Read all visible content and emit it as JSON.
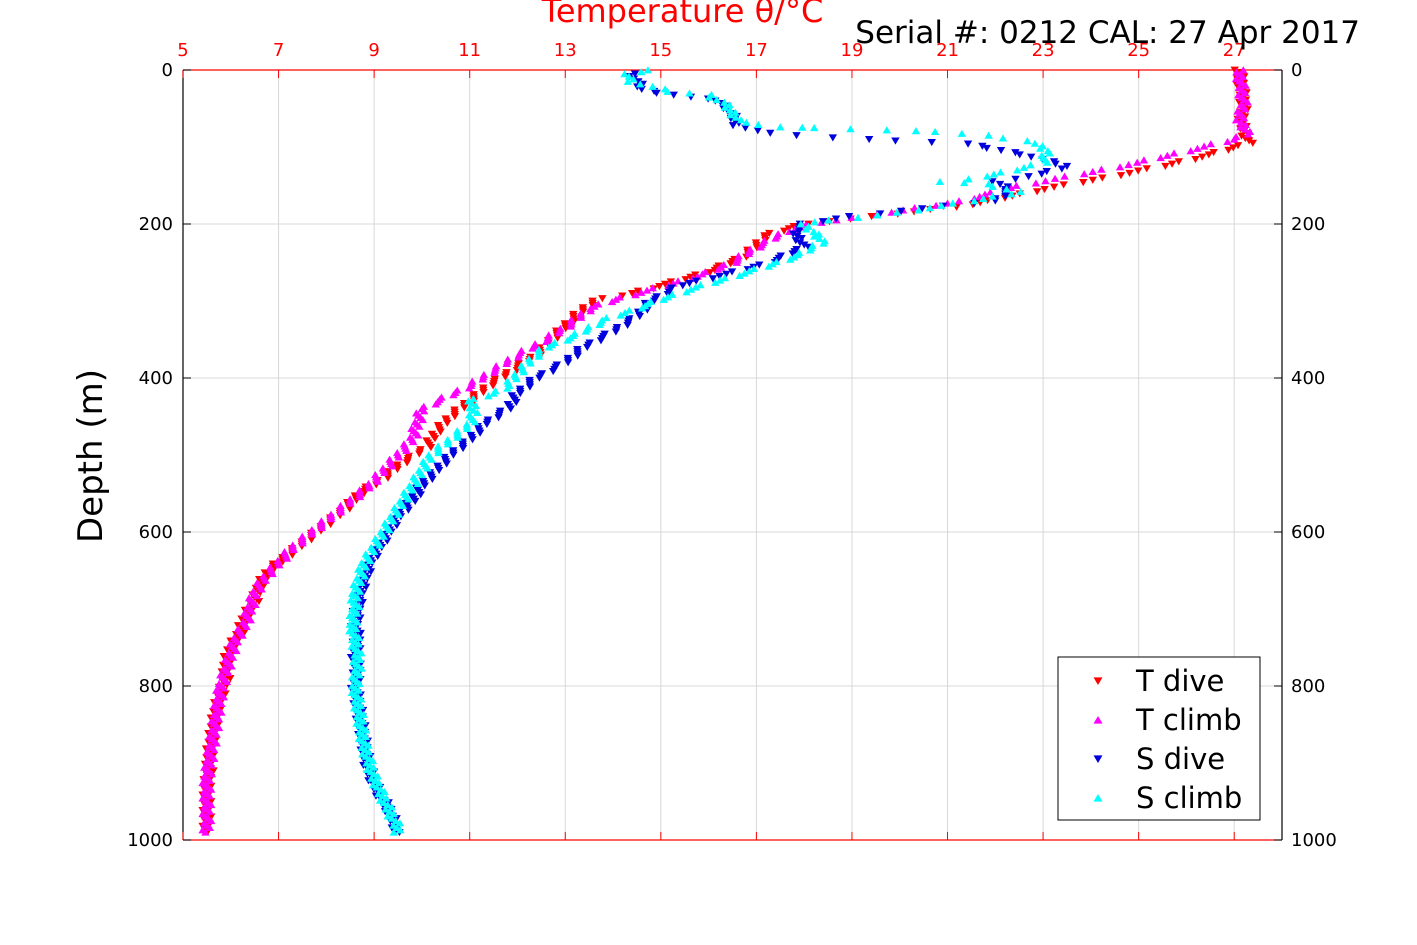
{
  "chart_data": {
    "type": "scatter",
    "title": "Temperature θ/°C",
    "annotation": "Serial #: 0212  CAL: 27 Apr 2017",
    "xlabel": "Temperature θ/°C",
    "ylabel": "Depth (m)",
    "xlim": [
      5,
      28
    ],
    "ylim": [
      0,
      1000
    ],
    "y_reversed": true,
    "x_axis_position": "top",
    "x_ticks": [
      5,
      7,
      9,
      11,
      13,
      15,
      17,
      19,
      21,
      23,
      25,
      27
    ],
    "y_ticks": [
      0,
      200,
      400,
      600,
      800,
      1000
    ],
    "y_ticks_right": true,
    "grid": true,
    "legend_position": "bottom-right",
    "colors": {
      "axis": "#ff0000",
      "grid": "#d8d8d8",
      "text": "#000000"
    },
    "series": [
      {
        "name": "T dive",
        "marker": "triangle-down",
        "color": "#ff0000",
        "points": [
          [
            27.1,
            0
          ],
          [
            27.15,
            20
          ],
          [
            27.2,
            45
          ],
          [
            27.15,
            70
          ],
          [
            27.3,
            95
          ],
          [
            26.5,
            110
          ],
          [
            25.5,
            125
          ],
          [
            24.3,
            140
          ],
          [
            23.0,
            155
          ],
          [
            21.5,
            175
          ],
          [
            19.5,
            190
          ],
          [
            18.0,
            200
          ],
          [
            17.2,
            215
          ],
          [
            16.8,
            240
          ],
          [
            16.1,
            260
          ],
          [
            15.3,
            275
          ],
          [
            14.4,
            290
          ],
          [
            13.6,
            300
          ],
          [
            13.2,
            320
          ],
          [
            12.8,
            345
          ],
          [
            12.4,
            370
          ],
          [
            11.9,
            390
          ],
          [
            11.4,
            410
          ],
          [
            11.0,
            430
          ],
          [
            10.6,
            450
          ],
          [
            10.3,
            470
          ],
          [
            10.1,
            490
          ],
          [
            9.6,
            510
          ],
          [
            9.2,
            530
          ],
          [
            8.7,
            550
          ],
          [
            8.4,
            570
          ],
          [
            8.0,
            590
          ],
          [
            7.6,
            610
          ],
          [
            7.2,
            630
          ],
          [
            6.8,
            650
          ],
          [
            6.6,
            670
          ],
          [
            6.5,
            690
          ],
          [
            6.3,
            710
          ],
          [
            6.2,
            730
          ],
          [
            6.0,
            750
          ],
          [
            5.9,
            770
          ],
          [
            5.9,
            790
          ],
          [
            5.8,
            810
          ],
          [
            5.7,
            830
          ],
          [
            5.65,
            850
          ],
          [
            5.6,
            870
          ],
          [
            5.55,
            890
          ],
          [
            5.55,
            910
          ],
          [
            5.5,
            930
          ],
          [
            5.5,
            950
          ],
          [
            5.5,
            970
          ],
          [
            5.5,
            988
          ]
        ]
      },
      {
        "name": "T climb",
        "marker": "triangle-up",
        "color": "#ff00ff",
        "points": [
          [
            27.1,
            0
          ],
          [
            27.15,
            20
          ],
          [
            27.2,
            45
          ],
          [
            27.1,
            65
          ],
          [
            27.3,
            80
          ],
          [
            27.0,
            90
          ],
          [
            26.0,
            105
          ],
          [
            25.0,
            120
          ],
          [
            23.8,
            135
          ],
          [
            22.5,
            150
          ],
          [
            21.3,
            170
          ],
          [
            19.8,
            185
          ],
          [
            18.3,
            198
          ],
          [
            17.6,
            210
          ],
          [
            17.0,
            230
          ],
          [
            16.5,
            250
          ],
          [
            15.9,
            265
          ],
          [
            15.1,
            280
          ],
          [
            14.2,
            295
          ],
          [
            13.5,
            310
          ],
          [
            13.1,
            330
          ],
          [
            12.6,
            350
          ],
          [
            12.0,
            370
          ],
          [
            11.5,
            390
          ],
          [
            11.0,
            410
          ],
          [
            10.5,
            425
          ],
          [
            10.0,
            440
          ],
          [
            9.9,
            460
          ],
          [
            9.8,
            480
          ],
          [
            9.5,
            500
          ],
          [
            9.2,
            520
          ],
          [
            8.9,
            540
          ],
          [
            8.5,
            560
          ],
          [
            8.1,
            580
          ],
          [
            7.7,
            600
          ],
          [
            7.3,
            620
          ],
          [
            7.0,
            640
          ],
          [
            6.7,
            660
          ],
          [
            6.5,
            680
          ],
          [
            6.4,
            700
          ],
          [
            6.3,
            720
          ],
          [
            6.1,
            740
          ],
          [
            6.0,
            760
          ],
          [
            5.9,
            780
          ],
          [
            5.8,
            800
          ],
          [
            5.75,
            820
          ],
          [
            5.7,
            840
          ],
          [
            5.65,
            860
          ],
          [
            5.6,
            880
          ],
          [
            5.55,
            900
          ],
          [
            5.5,
            920
          ],
          [
            5.5,
            940
          ],
          [
            5.5,
            960
          ],
          [
            5.5,
            975
          ],
          [
            5.5,
            990
          ]
        ]
      },
      {
        "name": "S dive",
        "marker": "triangle-down",
        "color": "#0000dd",
        "points": [
          [
            14.4,
            5
          ],
          [
            14.5,
            15
          ],
          [
            14.6,
            25
          ],
          [
            15.0,
            30
          ],
          [
            15.6,
            35
          ],
          [
            16.2,
            40
          ],
          [
            16.4,
            50
          ],
          [
            16.5,
            60
          ],
          [
            16.6,
            72
          ],
          [
            17.2,
            82
          ],
          [
            18.6,
            88
          ],
          [
            20.0,
            92
          ],
          [
            21.4,
            96
          ],
          [
            22.6,
            110
          ],
          [
            23.5,
            125
          ],
          [
            23.0,
            135
          ],
          [
            22.0,
            145
          ],
          [
            22.3,
            155
          ],
          [
            22.0,
            170
          ],
          [
            20.5,
            180
          ],
          [
            19.0,
            190
          ],
          [
            18.0,
            200
          ],
          [
            17.8,
            210
          ],
          [
            18.0,
            230
          ],
          [
            17.3,
            250
          ],
          [
            16.4,
            265
          ],
          [
            15.4,
            280
          ],
          [
            14.8,
            300
          ],
          [
            14.5,
            320
          ],
          [
            14.0,
            340
          ],
          [
            13.4,
            360
          ],
          [
            13.0,
            380
          ],
          [
            12.4,
            400
          ],
          [
            12.0,
            420
          ],
          [
            11.8,
            440
          ],
          [
            11.3,
            460
          ],
          [
            11.0,
            480
          ],
          [
            10.6,
            500
          ],
          [
            10.3,
            520
          ],
          [
            10.0,
            540
          ],
          [
            9.8,
            560
          ],
          [
            9.5,
            580
          ],
          [
            9.3,
            600
          ],
          [
            9.1,
            620
          ],
          [
            8.9,
            640
          ],
          [
            8.8,
            660
          ],
          [
            8.7,
            680
          ],
          [
            8.65,
            700
          ],
          [
            8.6,
            720
          ],
          [
            8.65,
            740
          ],
          [
            8.6,
            760
          ],
          [
            8.65,
            780
          ],
          [
            8.6,
            800
          ],
          [
            8.65,
            820
          ],
          [
            8.7,
            840
          ],
          [
            8.75,
            860
          ],
          [
            8.8,
            880
          ],
          [
            8.85,
            900
          ],
          [
            8.95,
            920
          ],
          [
            9.1,
            940
          ],
          [
            9.3,
            960
          ],
          [
            9.4,
            975
          ],
          [
            9.5,
            990
          ]
        ]
      },
      {
        "name": "S climb",
        "marker": "triangle-up",
        "color": "#00ffff",
        "points": [
          [
            14.7,
            0
          ],
          [
            14.3,
            5
          ],
          [
            14.4,
            15
          ],
          [
            15.2,
            28
          ],
          [
            16.0,
            32
          ],
          [
            16.3,
            42
          ],
          [
            16.5,
            55
          ],
          [
            16.7,
            68
          ],
          [
            17.5,
            74
          ],
          [
            18.3,
            75
          ],
          [
            19.7,
            78
          ],
          [
            20.8,
            80
          ],
          [
            21.8,
            85
          ],
          [
            22.7,
            92
          ],
          [
            23.1,
            105
          ],
          [
            23.0,
            120
          ],
          [
            22.4,
            130
          ],
          [
            21.8,
            138
          ],
          [
            20.9,
            145
          ],
          [
            21.8,
            148
          ],
          [
            22.5,
            158
          ],
          [
            21.5,
            170
          ],
          [
            20.0,
            185
          ],
          [
            18.6,
            195
          ],
          [
            17.9,
            200
          ],
          [
            18.2,
            210
          ],
          [
            18.4,
            222
          ],
          [
            17.9,
            240
          ],
          [
            17.2,
            255
          ],
          [
            16.4,
            270
          ],
          [
            15.6,
            285
          ],
          [
            15.0,
            298
          ],
          [
            14.4,
            312
          ],
          [
            13.8,
            325
          ],
          [
            13.2,
            345
          ],
          [
            12.6,
            360
          ],
          [
            12.3,
            375
          ],
          [
            12.0,
            395
          ],
          [
            11.8,
            410
          ],
          [
            11.5,
            420
          ],
          [
            11.0,
            430
          ],
          [
            11.1,
            445
          ],
          [
            11.0,
            460
          ],
          [
            10.6,
            480
          ],
          [
            10.2,
            500
          ],
          [
            10.0,
            520
          ],
          [
            9.8,
            540
          ],
          [
            9.6,
            560
          ],
          [
            9.4,
            580
          ],
          [
            9.2,
            600
          ],
          [
            9.0,
            620
          ],
          [
            8.8,
            640
          ],
          [
            8.7,
            660
          ],
          [
            8.6,
            680
          ],
          [
            8.6,
            700
          ],
          [
            8.55,
            720
          ],
          [
            8.6,
            740
          ],
          [
            8.65,
            760
          ],
          [
            8.65,
            780
          ],
          [
            8.6,
            800
          ],
          [
            8.65,
            820
          ],
          [
            8.7,
            840
          ],
          [
            8.75,
            860
          ],
          [
            8.8,
            880
          ],
          [
            8.9,
            900
          ],
          [
            9.0,
            920
          ],
          [
            9.15,
            940
          ],
          [
            9.3,
            960
          ],
          [
            9.45,
            978
          ],
          [
            9.5,
            990
          ]
        ]
      }
    ]
  }
}
